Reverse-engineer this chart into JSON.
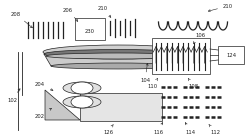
{
  "fig_w": 2.5,
  "fig_h": 1.39,
  "dpi": 100,
  "black": "#222222",
  "gray_dark": "#666666",
  "gray_mid": "#999999",
  "gray_light": "#cccccc",
  "gray_plate": "#aaaaaa",
  "gray_plate2": "#888888",
  "white": "#ffffff",
  "label_fs": 3.8,
  "lw": 0.5
}
